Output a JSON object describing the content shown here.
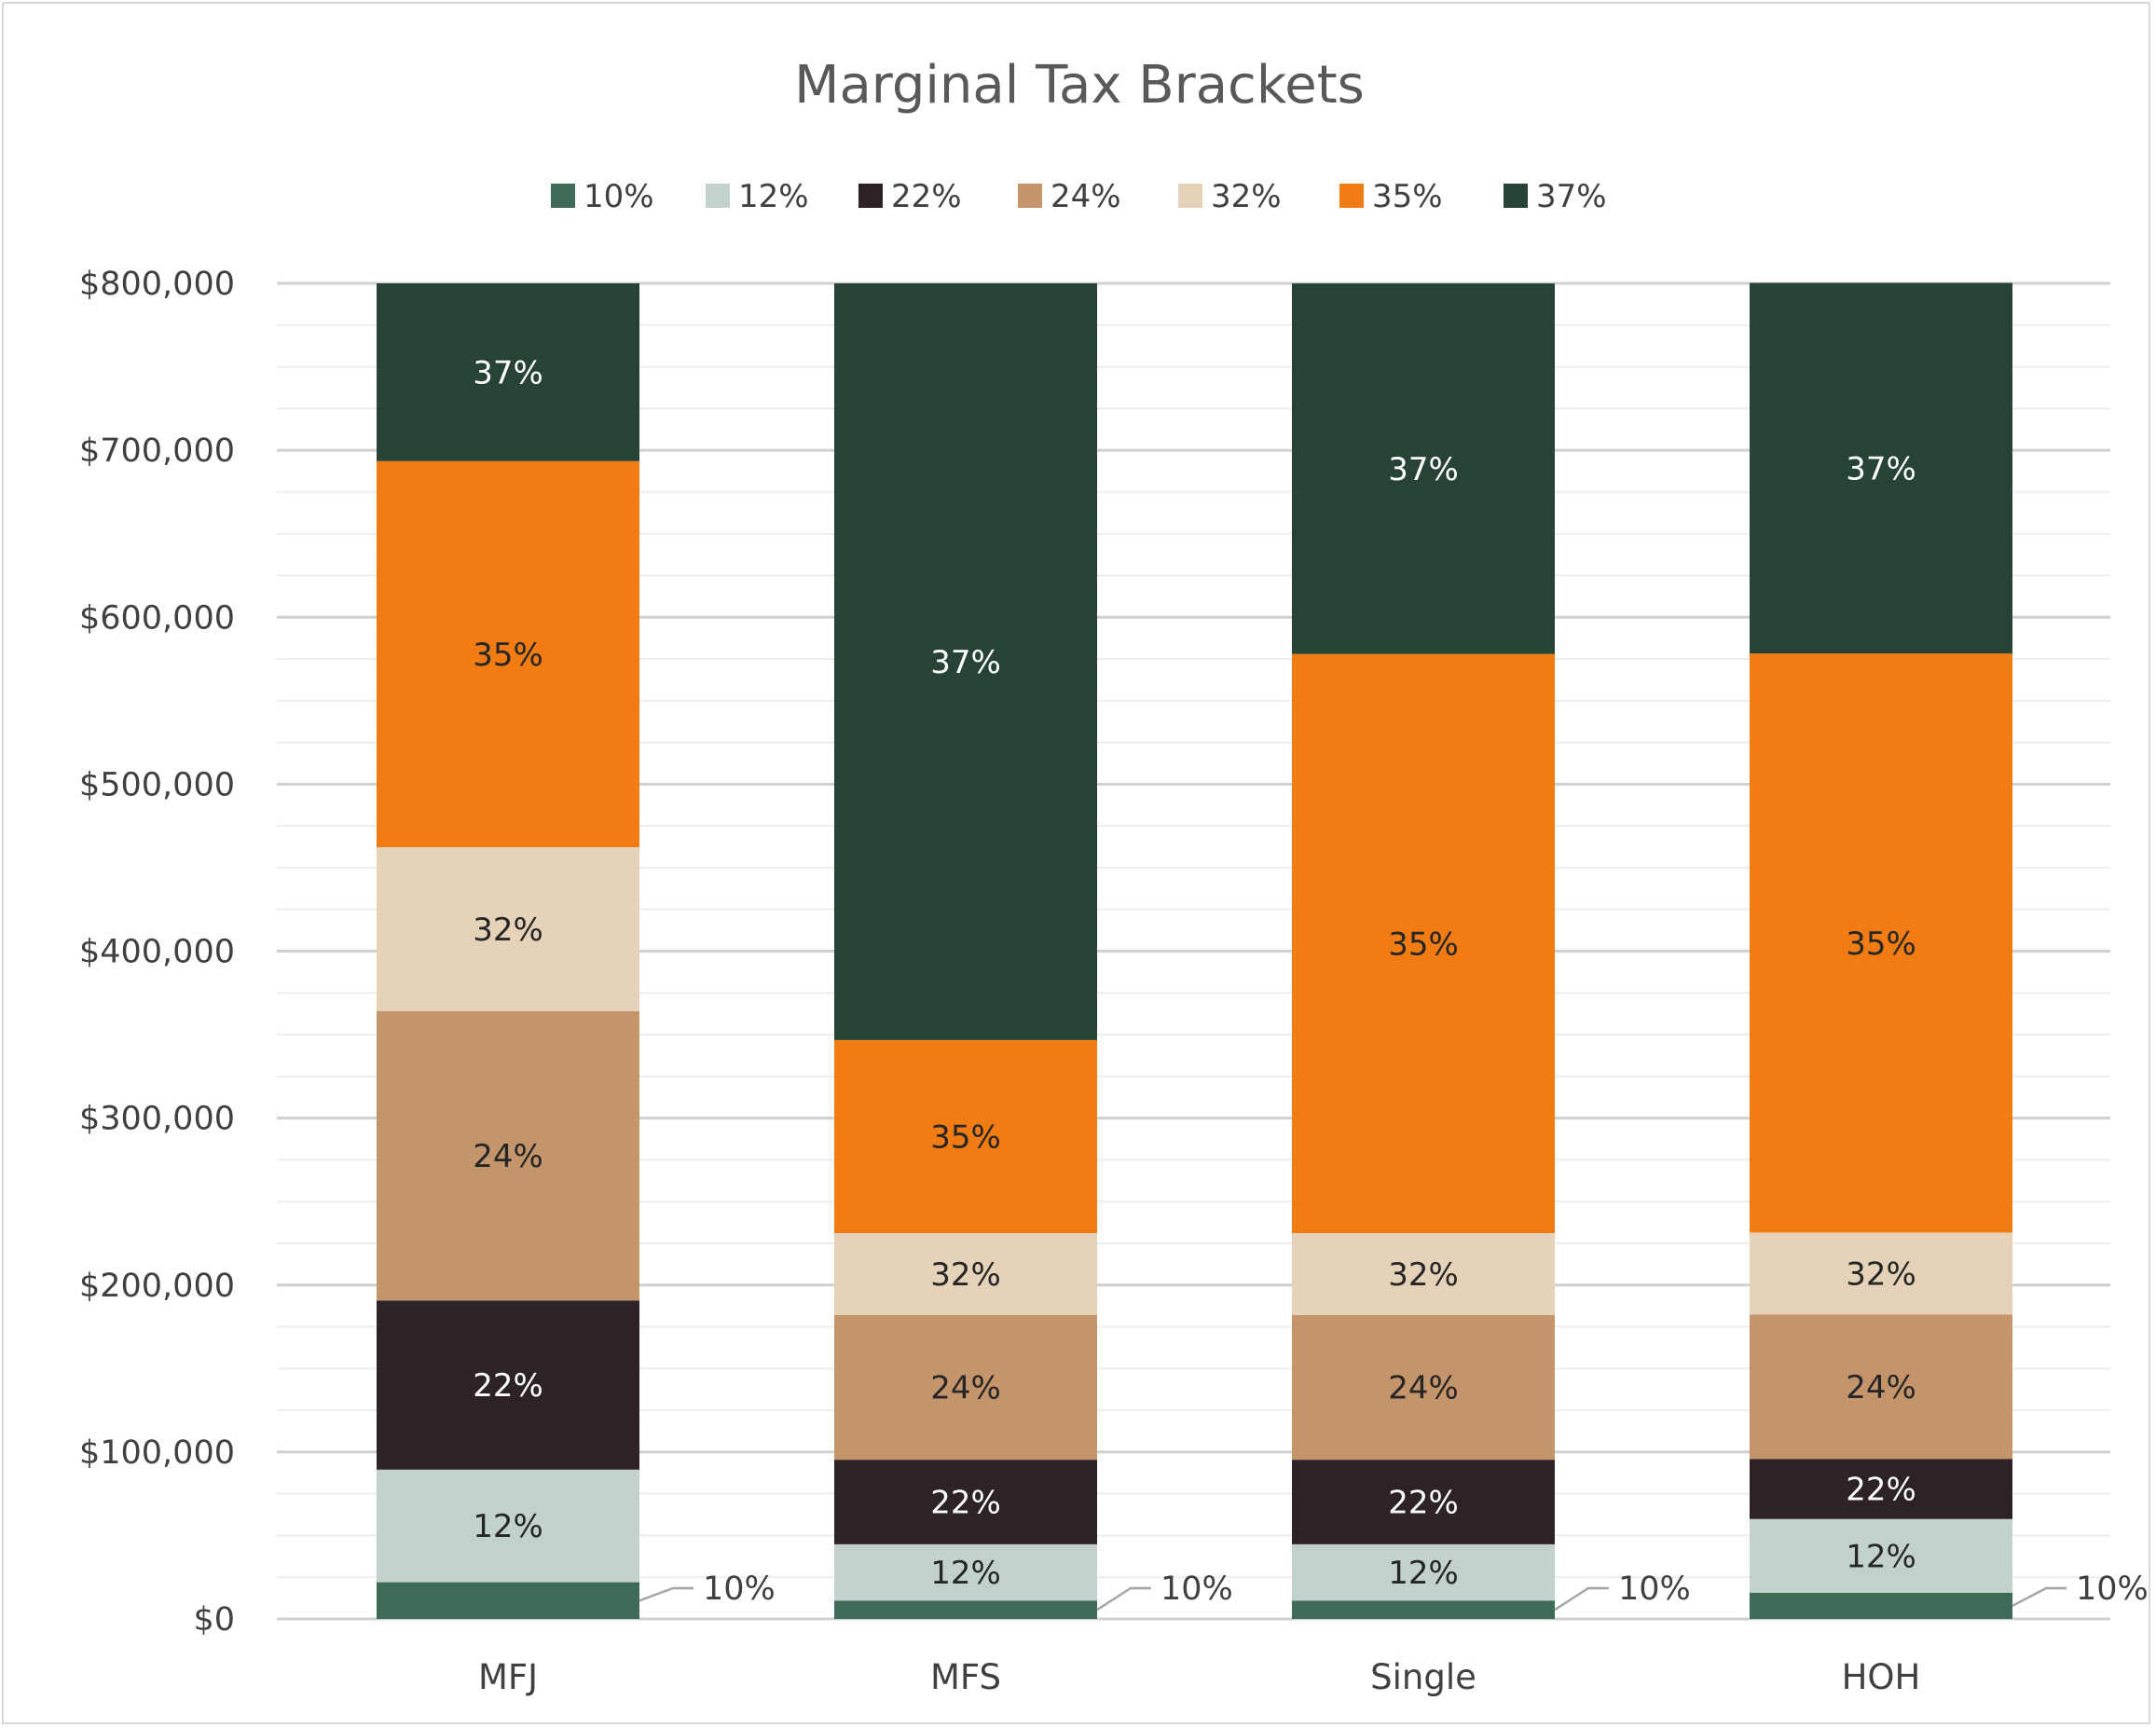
{
  "chart_data": {
    "type": "bar",
    "stacked": true,
    "title": "Marginal Tax Brackets",
    "categories": [
      "MFJ",
      "MFS",
      "Single",
      "HOH"
    ],
    "series": [
      {
        "name": "10%",
        "color": "#3d6b55",
        "label_color": "#262626",
        "values": [
          22000,
          11000,
          11000,
          15700
        ]
      },
      {
        "name": "12%",
        "color": "#c2d1cb",
        "label_color": "#262626",
        "values": [
          67450,
          33725,
          33725,
          44150
        ]
      },
      {
        "name": "22%",
        "color": "#2c2228",
        "label_color": "#ffffff",
        "values": [
          101300,
          50650,
          50650,
          35900
        ]
      },
      {
        "name": "24%",
        "color": "#c4946b",
        "label_color": "#262626",
        "values": [
          173350,
          86675,
          86675,
          86650
        ]
      },
      {
        "name": "32%",
        "color": "#e5d2b8",
        "label_color": "#262626",
        "values": [
          98150,
          49075,
          49075,
          49050
        ]
      },
      {
        "name": "35%",
        "color": "#f07c13",
        "label_color": "#262626",
        "values": [
          231250,
          115625,
          346875,
          346850
        ]
      },
      {
        "name": "37%",
        "color": "#264336",
        "label_color": "#ffffff",
        "values": [
          106500,
          453250,
          221950,
          221950
        ]
      }
    ],
    "ylim": [
      0,
      800000
    ],
    "yticks": [
      0,
      100000,
      200000,
      300000,
      400000,
      500000,
      600000,
      700000,
      800000
    ],
    "ytick_labels": [
      "$0",
      "$100,000",
      "$200,000",
      "$300,000",
      "$400,000",
      "$500,000",
      "$600,000",
      "$700,000",
      "$800,000"
    ],
    "segment_labels": [
      [
        "",
        "12%",
        "22%",
        "24%",
        "32%",
        "35%",
        "37%"
      ],
      [
        "",
        "12%",
        "22%",
        "24%",
        "32%",
        "35%",
        "37%"
      ],
      [
        "",
        "12%",
        "22%",
        "24%",
        "32%",
        "35%",
        "37%"
      ],
      [
        "",
        "12%",
        "22%",
        "24%",
        "32%",
        "35%",
        "37%"
      ]
    ],
    "callout_labels": [
      "10%",
      "10%",
      "10%",
      "10%"
    ],
    "xlabel": "",
    "ylabel": "",
    "legend_position": "top",
    "grid": true
  }
}
